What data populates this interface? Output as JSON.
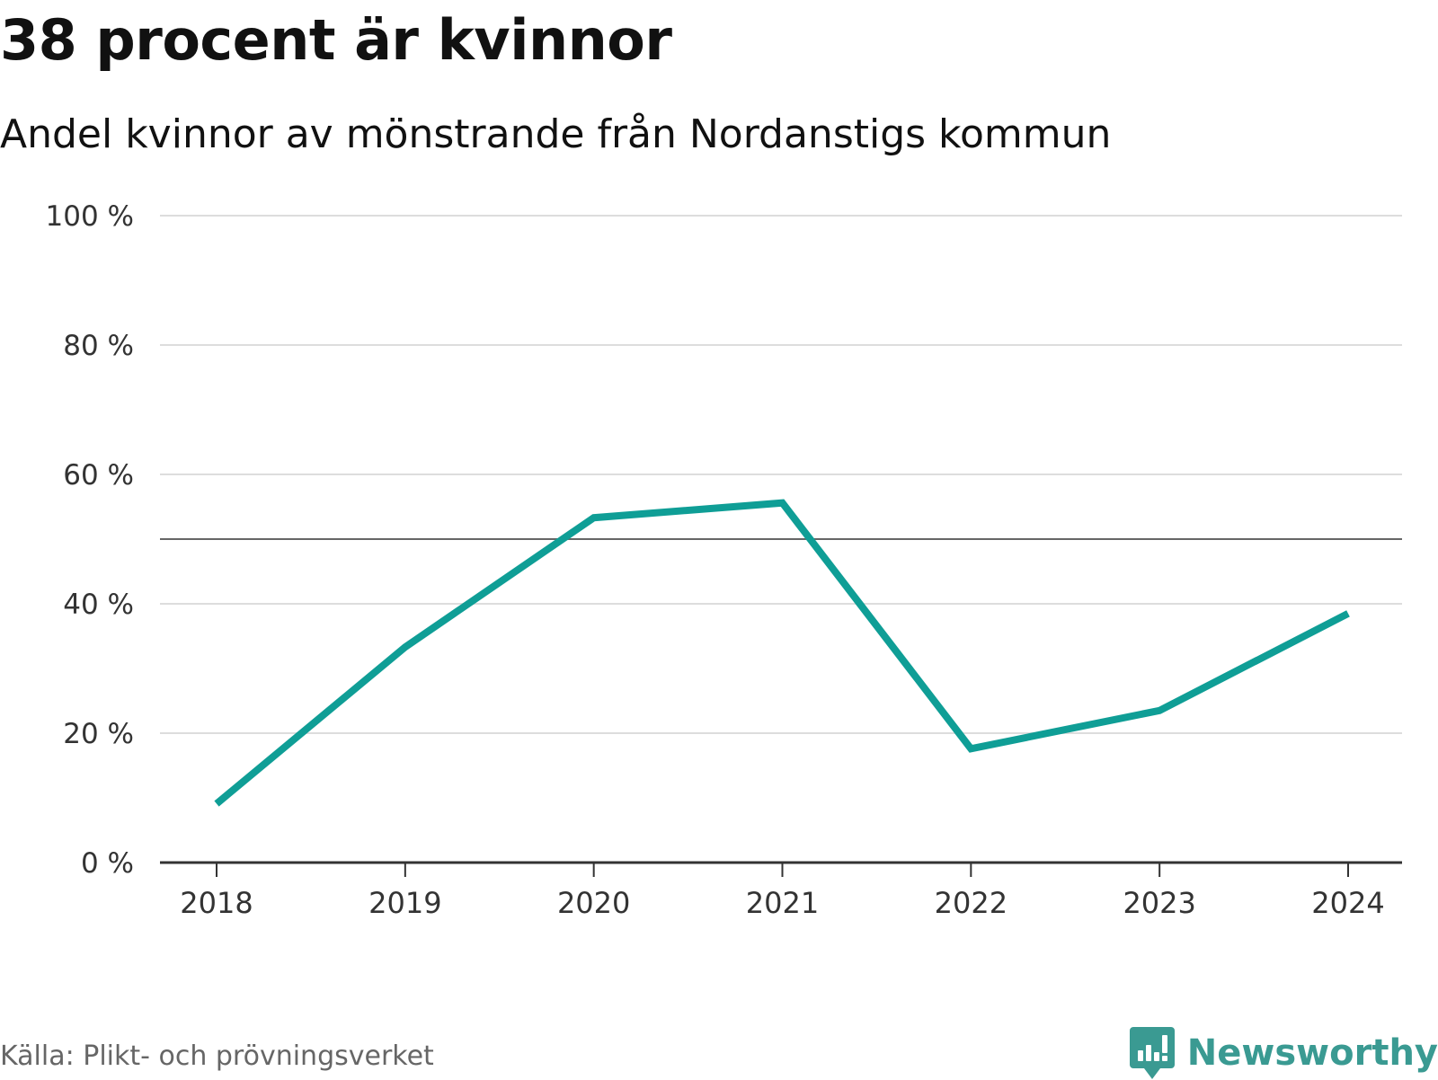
{
  "header": {
    "title": "38 procent är kvinnor",
    "subtitle": "Andel kvinnor av mönstrande från Nordanstigs kommun"
  },
  "footer": {
    "source": "Källa: Plikt- och prövningsverket",
    "brand": "Newsworthy",
    "brand_color": "#3a9a92"
  },
  "chart_data": {
    "type": "line",
    "title": "38 procent är kvinnor",
    "subtitle": "Andel kvinnor av mönstrande från Nordanstigs kommun",
    "xlabel": "",
    "ylabel": "",
    "categories": [
      "2018",
      "2019",
      "2020",
      "2021",
      "2022",
      "2023",
      "2024"
    ],
    "series": [
      {
        "name": "Andel kvinnor",
        "color": "#0f9e96",
        "values": [
          9.1,
          33.3,
          53.3,
          55.6,
          17.6,
          23.5,
          38.5
        ]
      }
    ],
    "reference_line": {
      "value": 50,
      "color": "#666666"
    },
    "ylim": [
      0,
      100
    ],
    "yticks": [
      0,
      20,
      40,
      60,
      80,
      100
    ],
    "ytick_labels": [
      "0 %",
      "20 %",
      "40 %",
      "60 %",
      "80 %",
      "100 %"
    ],
    "grid": true,
    "legend": "none"
  }
}
